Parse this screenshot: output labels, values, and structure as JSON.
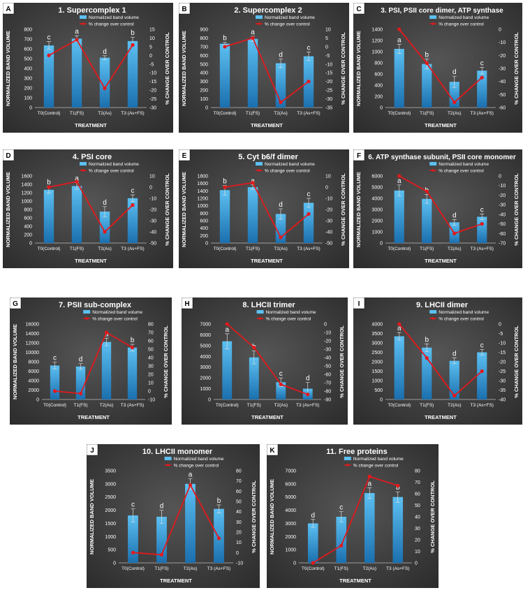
{
  "colors": {
    "background_dark": "#2b2b2b",
    "background_light": "#555555",
    "bar_top": "#5cc0f2",
    "bar_bottom": "#1b6fae",
    "line": "#e3191c",
    "text": "#ffffff",
    "panel_letter_bg": "#ffffff",
    "panel_letter_text": "#000000"
  },
  "chart_data": [
    {
      "type": "bar",
      "panel_letter": "A",
      "title": "1. Supercomplex 1",
      "xlabel": "TREATMENT",
      "ylabel": "NORMALIZED BAND VOLUME",
      "ylabel_right": "% CHANGE OVER CONTROL",
      "categories": [
        "T0(Control)",
        "T1(FS)",
        "T2(As)",
        "T3 (As+FS)"
      ],
      "ylim": [
        0,
        800
      ],
      "yticks": [
        0,
        100,
        200,
        300,
        400,
        500,
        600,
        700,
        800
      ],
      "y2lim": [
        -30,
        15
      ],
      "y2ticks": [
        -30,
        -25,
        -20,
        -15,
        -10,
        -5,
        0,
        5,
        10,
        15
      ],
      "series": [
        {
          "name": "Normalized band volume",
          "type": "bar",
          "values": [
            635,
            705,
            510,
            680
          ],
          "errors": [
            40,
            30,
            20,
            40
          ]
        },
        {
          "name": "% change over control",
          "type": "line",
          "axis": "right",
          "values": [
            0,
            9,
            -19,
            6
          ]
        }
      ],
      "significance_letters": [
        "c",
        "a",
        "d",
        "b"
      ],
      "legend_position": "top-right"
    },
    {
      "type": "bar",
      "panel_letter": "B",
      "title": "2. Supercomplex 2",
      "xlabel": "TREATMENT",
      "ylabel": "NORMALIZED BAND VOLUME",
      "ylabel_right": "% CHANGE OVER CONTROL",
      "categories": [
        "T0(Control)",
        "T1(FS)",
        "T2(As)",
        "T3 (As+FS)"
      ],
      "ylim": [
        0,
        900
      ],
      "yticks": [
        0,
        100,
        200,
        300,
        400,
        500,
        600,
        700,
        800,
        900
      ],
      "y2lim": [
        -35,
        10
      ],
      "y2ticks": [
        -35,
        -30,
        -25,
        -20,
        -15,
        -10,
        -5,
        0,
        5,
        10
      ],
      "series": [
        {
          "name": "Normalized band volume",
          "type": "bar",
          "values": [
            735,
            790,
            510,
            590
          ],
          "errors": [
            15,
            30,
            50,
            50
          ]
        },
        {
          "name": "% change over control",
          "type": "line",
          "axis": "right",
          "values": [
            0,
            5,
            -32,
            -20
          ]
        }
      ],
      "significance_letters": [
        "b",
        "a",
        "d",
        "c"
      ],
      "legend_position": "top-right"
    },
    {
      "type": "bar",
      "panel_letter": "C",
      "title": "3. PSI, PSII core dimer, ATP synthase",
      "xlabel": "TREATMENT",
      "ylabel": "NORMALIZED BAND VOLUME",
      "ylabel_right": "% CHANGE OVER CONTROL",
      "categories": [
        "T0(Control)",
        "T1(FS)",
        "T2(As)",
        "T3 (As+FS)"
      ],
      "ylim": [
        0,
        1400
      ],
      "yticks": [
        0,
        200,
        400,
        600,
        800,
        1000,
        1200,
        1400
      ],
      "y2lim": [
        -60,
        0
      ],
      "y2ticks": [
        -60,
        -50,
        -40,
        -30,
        -20,
        -10,
        0
      ],
      "series": [
        {
          "name": "Normalized band volume",
          "type": "bar",
          "values": [
            1050,
            780,
            460,
            660
          ],
          "errors": [
            80,
            90,
            100,
            60
          ]
        },
        {
          "name": "% change over control",
          "type": "line",
          "axis": "right",
          "values": [
            0,
            -26,
            -56,
            -37
          ]
        }
      ],
      "significance_letters": [
        "a",
        "b",
        "d",
        "c"
      ],
      "legend_position": "top-right"
    },
    {
      "type": "bar",
      "panel_letter": "D",
      "title": "4. PSI core",
      "xlabel": "TREATMENT",
      "ylabel": "NORMALIZED BAND VOLUME",
      "ylabel_right": "% CHANGE OVER CONTROL",
      "categories": [
        "T0(Control)",
        "T1(FS)",
        "T2(As)",
        "T3 (As+FS)"
      ],
      "ylim": [
        0,
        1600
      ],
      "yticks": [
        0,
        200,
        400,
        600,
        800,
        1000,
        1200,
        1400,
        1600
      ],
      "y2lim": [
        -50,
        10
      ],
      "y2ticks": [
        -50,
        -40,
        -30,
        -20,
        -10,
        0,
        10
      ],
      "series": [
        {
          "name": "Normalized band volume",
          "type": "bar",
          "values": [
            1270,
            1360,
            750,
            1070
          ],
          "errors": [
            80,
            80,
            120,
            80
          ]
        },
        {
          "name": "% change over control",
          "type": "line",
          "axis": "right",
          "values": [
            0,
            5,
            -40,
            -16
          ]
        }
      ],
      "significance_letters": [
        "b",
        "a",
        "d",
        "c"
      ],
      "legend_position": "top-right"
    },
    {
      "type": "bar",
      "panel_letter": "E",
      "title": "5. Cyt b6/f dimer",
      "xlabel": "TREATMENT",
      "ylabel": "NORMALIZED BAND VOLUME",
      "ylabel_right": "% CHANGE OVER CONTROL",
      "categories": [
        "T0(Control)",
        "T1(FS)",
        "T2(As)",
        "T3 (As+FS)"
      ],
      "ylim": [
        0,
        1800
      ],
      "yticks": [
        0,
        200,
        400,
        600,
        800,
        1000,
        1200,
        1400,
        1600,
        1800
      ],
      "y2lim": [
        -50,
        10
      ],
      "y2ticks": [
        -50,
        -40,
        -30,
        -20,
        -10,
        0,
        10
      ],
      "series": [
        {
          "name": "Normalized band volume",
          "type": "bar",
          "values": [
            1420,
            1500,
            780,
            1080
          ],
          "errors": [
            130,
            60,
            140,
            120
          ]
        },
        {
          "name": "% change over control",
          "type": "line",
          "axis": "right",
          "values": [
            0,
            4,
            -45,
            -24
          ]
        }
      ],
      "significance_letters": [
        "b",
        "a",
        "d",
        "c"
      ],
      "legend_position": "top-right"
    },
    {
      "type": "bar",
      "panel_letter": "F",
      "title": "6. ATP synthase subunit, PSII core monomer",
      "xlabel": "TREATMENT",
      "ylabel": "NORMALIZED BAND VOLUME",
      "ylabel_right": "% CHANGE OVER CONTROL",
      "categories": [
        "T0(Control)",
        "T1(FS)",
        "T2(As)",
        "T3 (As+FS)"
      ],
      "ylim": [
        0,
        6000
      ],
      "yticks": [
        0,
        1000,
        2000,
        3000,
        4000,
        5000,
        6000
      ],
      "y2lim": [
        -70,
        0
      ],
      "y2ticks": [
        -70,
        -60,
        -50,
        -40,
        -30,
        -20,
        -10,
        0
      ],
      "series": [
        {
          "name": "Normalized band volume",
          "type": "bar",
          "values": [
            4700,
            3950,
            1850,
            2350
          ],
          "errors": [
            500,
            400,
            250,
            250
          ]
        },
        {
          "name": "% change over control",
          "type": "line",
          "axis": "right",
          "values": [
            0,
            -16,
            -60,
            -50
          ]
        }
      ],
      "significance_letters": [
        "a",
        "b",
        "d",
        "c"
      ],
      "legend_position": "top-right"
    },
    {
      "type": "bar",
      "panel_letter": "G",
      "title": "7. PSII sub-complex",
      "xlabel": "TREATMENT",
      "ylabel": "NORMALIZED BAND VOLUME",
      "ylabel_right": "% CHANGE OVER CONTROL",
      "categories": [
        "T0(Control)",
        "T1(FS)",
        "T2(As)",
        "T3 (As+FS)"
      ],
      "ylim": [
        0,
        16000
      ],
      "yticks": [
        0,
        2000,
        4000,
        6000,
        8000,
        10000,
        12000,
        14000,
        16000
      ],
      "y2lim": [
        -10,
        80
      ],
      "y2ticks": [
        -10,
        0,
        10,
        20,
        30,
        40,
        50,
        60,
        70,
        80
      ],
      "series": [
        {
          "name": "Normalized band volume",
          "type": "bar",
          "values": [
            7200,
            7000,
            12200,
            11000
          ],
          "errors": [
            700,
            600,
            800,
            700
          ]
        },
        {
          "name": "% change over control",
          "type": "line",
          "axis": "right",
          "values": [
            0,
            -3,
            70,
            52
          ]
        }
      ],
      "significance_letters": [
        "c",
        "d",
        "a",
        "b"
      ],
      "legend_position": "top-right"
    },
    {
      "type": "bar",
      "panel_letter": "H",
      "title": "8. LHCII trimer",
      "xlabel": "TREATMENT",
      "ylabel": "",
      "ylabel_right": "% CHANGE OVER CONTROL",
      "categories": [
        "T0(Control)",
        "T1(FS)",
        "T2(As)",
        "T3 (As+FS)"
      ],
      "ylim": [
        0,
        7000
      ],
      "yticks": [
        0,
        1000,
        2000,
        3000,
        4000,
        5000,
        6000,
        7000
      ],
      "y2lim": [
        -90,
        0
      ],
      "y2ticks": [
        -90,
        -80,
        -70,
        -60,
        -50,
        -40,
        -30,
        -20,
        -10,
        0
      ],
      "series": [
        {
          "name": "Normalized band volume",
          "type": "bar",
          "values": [
            5400,
            3900,
            1600,
            1000
          ],
          "errors": [
            700,
            600,
            400,
            600
          ]
        },
        {
          "name": "% change over control",
          "type": "line",
          "axis": "right",
          "values": [
            0,
            -28,
            -72,
            -84
          ]
        }
      ],
      "significance_letters": [
        "a",
        "b",
        "c",
        "d"
      ],
      "legend_position": "top-right"
    },
    {
      "type": "bar",
      "panel_letter": "I",
      "title": "9. LHCII dimer",
      "xlabel": "TREATMENT",
      "ylabel": "",
      "ylabel_right": "% CHANGE OVER CONTROL",
      "categories": [
        "T0(Control)",
        "T1(FS)",
        "T2(As)",
        "T3 (As+FS)"
      ],
      "ylim": [
        0,
        4000
      ],
      "yticks": [
        0,
        500,
        1000,
        1500,
        2000,
        2500,
        3000,
        3500,
        4000
      ],
      "y2lim": [
        -40,
        0
      ],
      "y2ticks": [
        -40,
        -35,
        -30,
        -25,
        -20,
        -15,
        -10,
        -5,
        0
      ],
      "series": [
        {
          "name": "Normalized band volume",
          "type": "bar",
          "values": [
            3350,
            2750,
            2050,
            2500
          ],
          "errors": [
            200,
            200,
            150,
            150
          ]
        },
        {
          "name": "% change over control",
          "type": "line",
          "axis": "right",
          "values": [
            0,
            -18,
            -38,
            -25
          ]
        }
      ],
      "significance_letters": [
        "a",
        "b",
        "d",
        "c"
      ],
      "legend_position": "top-right"
    },
    {
      "type": "bar",
      "panel_letter": "J",
      "title": "10. LHCII monomer",
      "xlabel": "TREATMENT",
      "ylabel": "NORMALIZED BAND VOLUME",
      "ylabel_right": "% CHANGE OVER CONTROL",
      "categories": [
        "T0(Control)",
        "T1(FS)",
        "T2(As)",
        "T3 (As+FS)"
      ],
      "ylim": [
        0,
        3500
      ],
      "yticks": [
        0,
        500,
        1000,
        1500,
        2000,
        2500,
        3000,
        3500
      ],
      "y2lim": [
        -10,
        80
      ],
      "y2ticks": [
        -10,
        0,
        10,
        20,
        30,
        40,
        50,
        60,
        70,
        80
      ],
      "series": [
        {
          "name": "Normalized band volume",
          "type": "bar",
          "values": [
            1800,
            1750,
            3000,
            2050
          ],
          "errors": [
            250,
            250,
            200,
            150
          ]
        },
        {
          "name": "% change over control",
          "type": "line",
          "axis": "right",
          "values": [
            0,
            -2,
            66,
            14
          ]
        }
      ],
      "significance_letters": [
        "c",
        "d",
        "a",
        "b"
      ],
      "legend_position": "top-right"
    },
    {
      "type": "bar",
      "panel_letter": "K",
      "title": "11. Free proteins",
      "xlabel": "TREATMENT",
      "ylabel": "NORMALIZED BAND VOLUME",
      "ylabel_right": "% CHANGE OVER CONTROL",
      "categories": [
        "T0(Control)",
        "T1(FS)",
        "T2(As)",
        "T3 (As+FS)"
      ],
      "ylim": [
        0,
        7000
      ],
      "yticks": [
        0,
        1000,
        2000,
        3000,
        4000,
        5000,
        6000,
        7000
      ],
      "y2lim": [
        0,
        80
      ],
      "y2ticks": [
        0,
        10,
        20,
        30,
        40,
        50,
        60,
        70,
        80
      ],
      "series": [
        {
          "name": "Normalized band volume",
          "type": "bar",
          "values": [
            3000,
            3500,
            5300,
            5000
          ],
          "errors": [
            300,
            400,
            400,
            400
          ]
        },
        {
          "name": "% change over control",
          "type": "line",
          "axis": "right",
          "values": [
            0,
            15,
            75,
            67
          ]
        }
      ],
      "significance_letters": [
        "d",
        "c",
        "a",
        "b"
      ],
      "legend_position": "top-right"
    }
  ]
}
